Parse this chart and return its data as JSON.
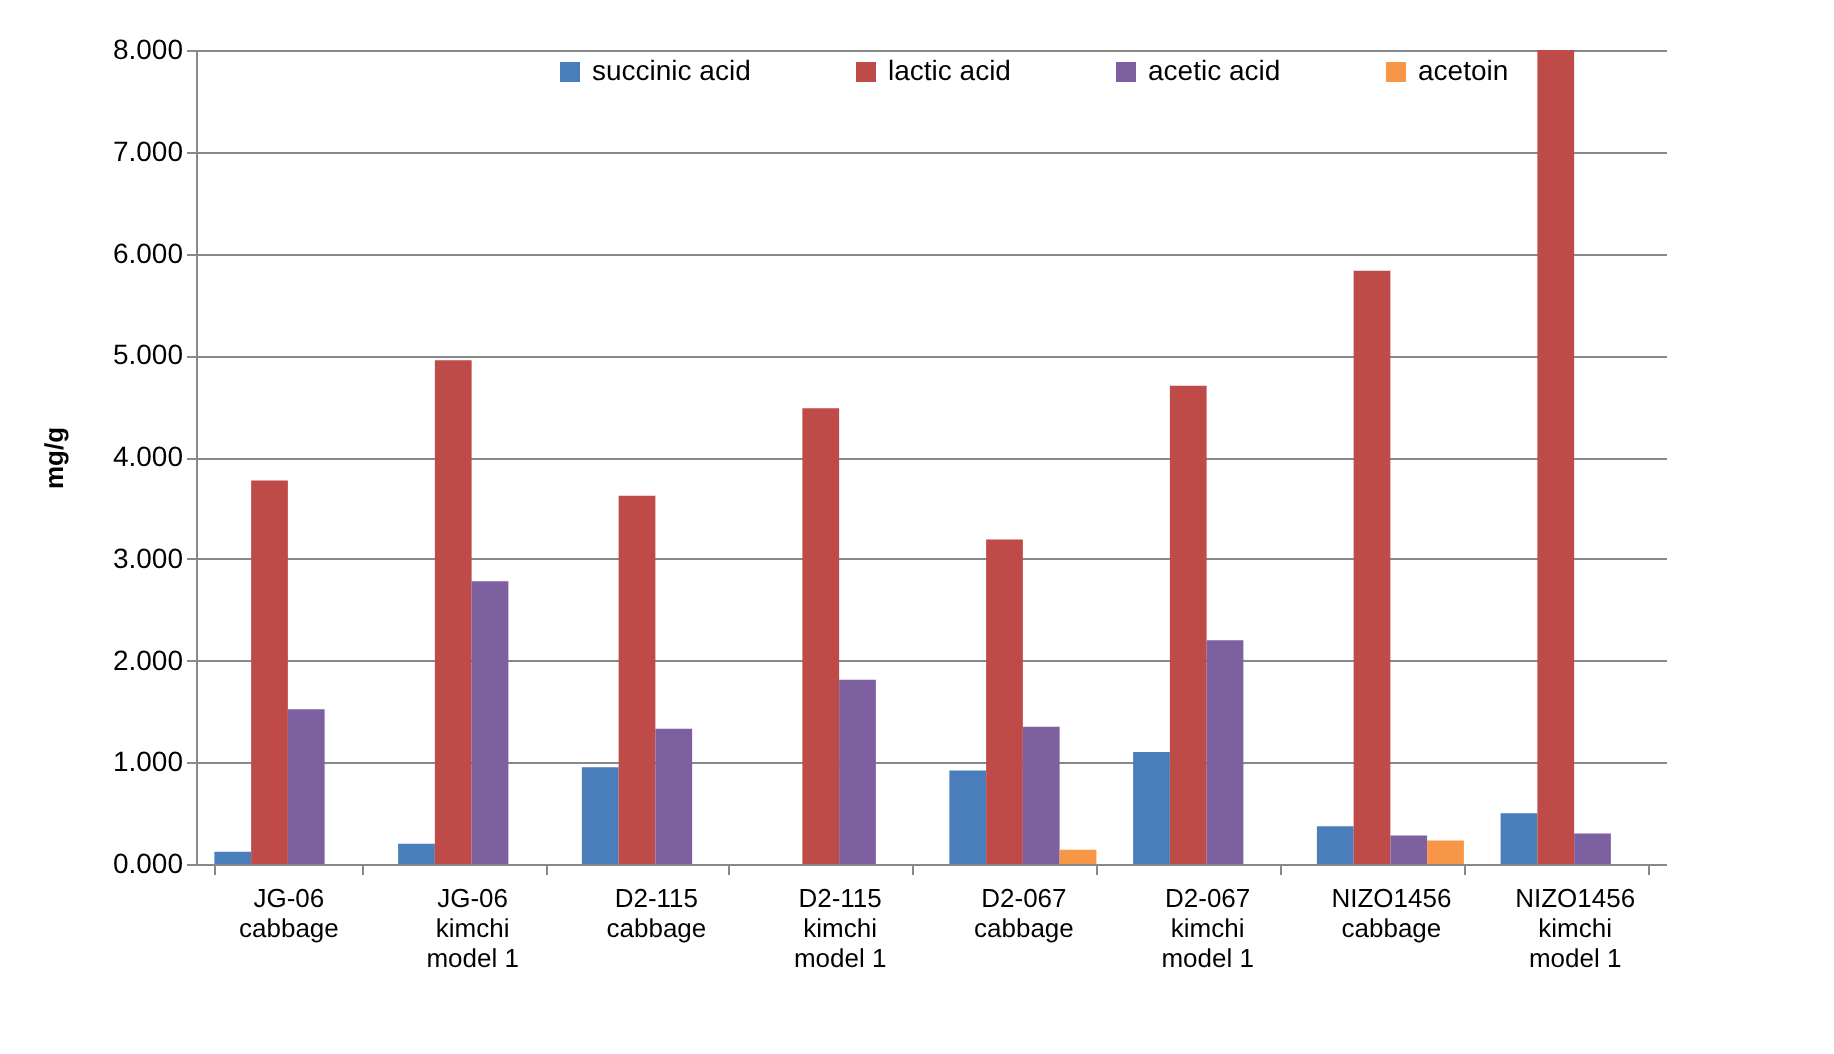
{
  "chart_data": {
    "type": "bar",
    "ylabel": "mg/g",
    "categories": [
      "JG-06 cabbage",
      "JG-06 kimchi model 1",
      "D2-115 cabbage",
      "D2-115 kimchi model 1",
      "D2-067 cabbage",
      "D2-067 kimchi model 1",
      "NIZO1456 cabbage",
      "NIZO1456 kimchi model 1"
    ],
    "series": [
      {
        "name": "succinic acid",
        "color": "#4a7ebb",
        "values": [
          0.12,
          0.2,
          0.95,
          0,
          0.92,
          1.1,
          0.37,
          0.5
        ]
      },
      {
        "name": "lactic acid",
        "color": "#be4b48",
        "values": [
          3.77,
          4.95,
          3.62,
          4.48,
          3.19,
          4.7,
          5.83,
          8.0
        ]
      },
      {
        "name": "acetic acid",
        "color": "#7d60a0",
        "values": [
          1.52,
          2.78,
          1.33,
          1.81,
          1.35,
          2.2,
          0.28,
          0.3
        ]
      },
      {
        "name": "acetoin",
        "color": "#f79646",
        "values": [
          0,
          0,
          0,
          0,
          0.14,
          0,
          0.23,
          0
        ]
      }
    ],
    "ylim": [
      0,
      8
    ],
    "yticks": [
      {
        "value": 0,
        "label": "0.000"
      },
      {
        "value": 1,
        "label": "1.000"
      },
      {
        "value": 2,
        "label": "2.000"
      },
      {
        "value": 3,
        "label": "3.000"
      },
      {
        "value": 4,
        "label": "4.000"
      },
      {
        "value": 5,
        "label": "5.000"
      },
      {
        "value": 6,
        "label": "6.000"
      },
      {
        "value": 7,
        "label": "7.000"
      },
      {
        "value": 8,
        "label": "8.000"
      }
    ],
    "grid": "y",
    "legend": "top"
  }
}
